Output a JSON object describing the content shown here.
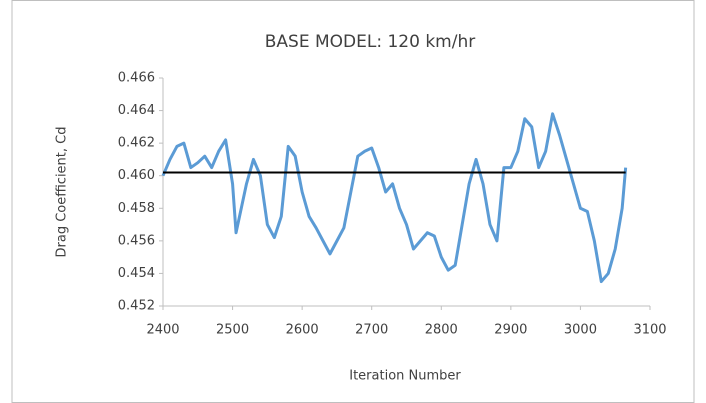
{
  "chart_data": {
    "type": "line",
    "title": "BASE MODEL: 120 km/hr",
    "xlabel": "Iteration Number",
    "ylabel": "Drag Coefficient, Cd",
    "xlim": [
      2400,
      3100
    ],
    "xticks": [
      2400,
      2500,
      2600,
      2700,
      2800,
      2900,
      3000,
      3100
    ],
    "ylim": [
      0.452,
      0.466
    ],
    "yticks": [
      0.452,
      0.454,
      0.456,
      0.458,
      {
        "value": 0.46,
        "label": "0.460"
      },
      0.462,
      0.464,
      0.466
    ],
    "grid": false,
    "series": [
      {
        "color": "#5b9bd5",
        "x": [
          2400,
          2410,
          2420,
          2430,
          2440,
          2450,
          2460,
          2470,
          2480,
          2490,
          2500,
          2505,
          2510,
          2520,
          2530,
          2540,
          2550,
          2560,
          2570,
          2580,
          2590,
          2600,
          2610,
          2620,
          2630,
          2640,
          2650,
          2660,
          2670,
          2680,
          2690,
          2700,
          2710,
          2720,
          2730,
          2740,
          2750,
          2760,
          2770,
          2780,
          2790,
          2800,
          2810,
          2820,
          2830,
          2840,
          2850,
          2860,
          2870,
          2880,
          2890,
          2900,
          2910,
          2920,
          2930,
          2940,
          2950,
          2960,
          2970,
          2980,
          2990,
          3000,
          3010,
          3020,
          3030,
          3040,
          3050,
          3060,
          3065
        ],
        "values": [
          0.46,
          0.461,
          0.4618,
          0.462,
          0.4605,
          0.4608,
          0.4612,
          0.4605,
          0.4615,
          0.4622,
          0.4595,
          0.4565,
          0.4575,
          0.4595,
          0.461,
          0.46,
          0.457,
          0.4562,
          0.4575,
          0.4618,
          0.4612,
          0.459,
          0.4575,
          0.4568,
          0.456,
          0.4552,
          0.456,
          0.4568,
          0.459,
          0.4612,
          0.4615,
          0.4617,
          0.4605,
          0.459,
          0.4595,
          0.458,
          0.457,
          0.4555,
          0.456,
          0.4565,
          0.4563,
          0.455,
          0.4542,
          0.4545,
          0.457,
          0.4595,
          0.461,
          0.4595,
          0.457,
          0.456,
          0.4605,
          0.4605,
          0.4615,
          0.4635,
          0.463,
          0.4605,
          0.4615,
          0.4638,
          0.4625,
          0.461,
          0.4595,
          0.458,
          0.4578,
          0.456,
          0.4535,
          0.454,
          0.4555,
          0.458,
          0.4605
        ]
      },
      {
        "color": "#000000",
        "x": [
          2400,
          3065
        ],
        "values": [
          0.4602,
          0.4602
        ]
      }
    ]
  }
}
